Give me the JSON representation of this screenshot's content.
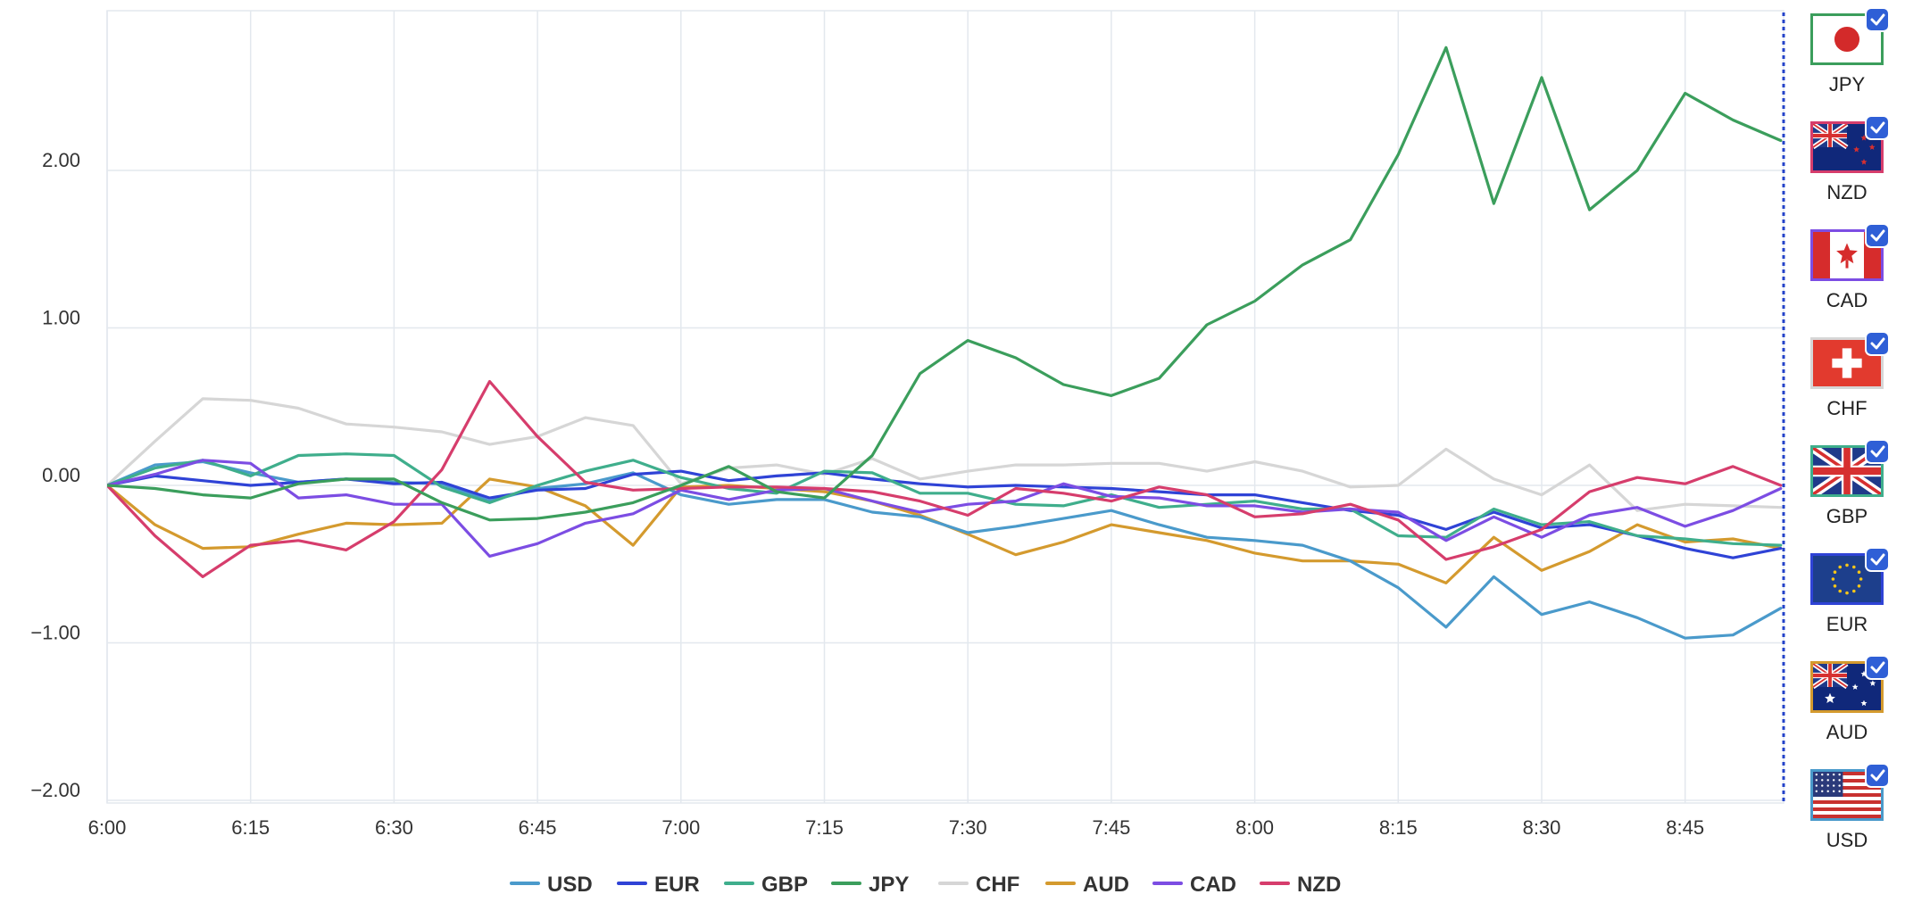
{
  "chart_data": {
    "type": "line",
    "title": "",
    "xlabel": "",
    "ylabel": "",
    "ylim": [
      -2.0,
      2.0
    ],
    "y_ticks": [
      "2.00",
      "1.00",
      "0.00",
      "−1.00",
      "−2.00"
    ],
    "y_tick_values": [
      2,
      1,
      0,
      -1,
      -2
    ],
    "x_ticks": [
      "6:00",
      "6:15",
      "6:30",
      "6:45",
      "7:00",
      "7:15",
      "7:30",
      "7:45",
      "8:00",
      "8:15",
      "8:30",
      "8:45"
    ],
    "x": [
      "6:00",
      "6:05",
      "6:10",
      "6:15",
      "6:20",
      "6:25",
      "6:30",
      "6:35",
      "6:40",
      "6:45",
      "6:50",
      "6:55",
      "7:00",
      "7:05",
      "7:10",
      "7:15",
      "7:20",
      "7:25",
      "7:30",
      "7:35",
      "7:40",
      "7:45",
      "7:50",
      "7:55",
      "8:00",
      "8:05",
      "8:10",
      "8:15",
      "8:20",
      "8:25",
      "8:30",
      "8:35",
      "8:40",
      "8:45",
      "8:50",
      "8:55"
    ],
    "grid": true,
    "legend": "bottom-center",
    "series": [
      {
        "name": "USD",
        "color": "#4a9acb",
        "values": [
          0.0,
          0.13,
          0.15,
          0.08,
          0.02,
          0.04,
          0.02,
          0.01,
          -0.1,
          -0.02,
          0.01,
          0.08,
          -0.06,
          -0.12,
          -0.09,
          -0.09,
          -0.17,
          -0.2,
          -0.3,
          -0.26,
          -0.21,
          -0.16,
          -0.25,
          -0.33,
          -0.35,
          -0.38,
          -0.48,
          -0.65,
          -0.9,
          -0.58,
          -0.82,
          -0.74,
          -0.84,
          -0.97,
          -0.95,
          -0.78
        ]
      },
      {
        "name": "EUR",
        "color": "#2f43d6",
        "values": [
          0.0,
          0.06,
          0.03,
          0.0,
          0.02,
          0.04,
          0.01,
          0.02,
          -0.08,
          -0.03,
          -0.02,
          0.07,
          0.09,
          0.03,
          0.06,
          0.08,
          0.04,
          0.01,
          -0.01,
          0.0,
          -0.01,
          -0.02,
          -0.04,
          -0.06,
          -0.06,
          -0.11,
          -0.16,
          -0.19,
          -0.28,
          -0.17,
          -0.27,
          -0.25,
          -0.32,
          -0.4,
          -0.46,
          -0.4
        ]
      },
      {
        "name": "GBP",
        "color": "#3fae8c",
        "values": [
          0.0,
          0.11,
          0.16,
          0.06,
          0.19,
          0.2,
          0.19,
          -0.01,
          -0.11,
          0.0,
          0.09,
          0.16,
          0.05,
          -0.02,
          -0.05,
          0.09,
          0.08,
          -0.05,
          -0.05,
          -0.12,
          -0.13,
          -0.06,
          -0.14,
          -0.12,
          -0.1,
          -0.15,
          -0.15,
          -0.32,
          -0.33,
          -0.15,
          -0.25,
          -0.23,
          -0.32,
          -0.34,
          -0.37,
          -0.38
        ]
      },
      {
        "name": "JPY",
        "color": "#3b9e5c",
        "values": [
          0.0,
          -0.02,
          -0.06,
          -0.08,
          0.01,
          0.04,
          0.04,
          -0.11,
          -0.22,
          -0.21,
          -0.17,
          -0.11,
          0.0,
          0.12,
          -0.04,
          -0.08,
          0.19,
          0.71,
          0.92,
          0.81,
          0.64,
          0.57,
          0.68,
          1.02,
          1.17,
          1.4,
          1.56,
          2.1,
          2.78,
          1.79,
          2.59,
          1.75,
          2.0,
          2.49,
          2.32,
          2.19
        ]
      },
      {
        "name": "CHF",
        "color": "#d6d6d6",
        "values": [
          0.0,
          0.28,
          0.55,
          0.54,
          0.49,
          0.39,
          0.37,
          0.34,
          0.26,
          0.31,
          0.43,
          0.38,
          0.01,
          0.11,
          0.13,
          0.07,
          0.17,
          0.04,
          0.09,
          0.13,
          0.13,
          0.14,
          0.14,
          0.09,
          0.15,
          0.09,
          -0.01,
          0.0,
          0.23,
          0.04,
          -0.06,
          0.13,
          -0.16,
          -0.12,
          -0.13,
          -0.14
        ]
      },
      {
        "name": "AUD",
        "color": "#d49a2e",
        "values": [
          0.0,
          -0.25,
          -0.4,
          -0.39,
          -0.31,
          -0.24,
          -0.25,
          -0.24,
          0.04,
          -0.01,
          -0.13,
          -0.38,
          -0.01,
          0.0,
          -0.02,
          -0.04,
          -0.1,
          -0.19,
          -0.31,
          -0.44,
          -0.36,
          -0.25,
          -0.3,
          -0.35,
          -0.43,
          -0.48,
          -0.48,
          -0.5,
          -0.62,
          -0.33,
          -0.54,
          -0.42,
          -0.25,
          -0.36,
          -0.34,
          -0.4
        ]
      },
      {
        "name": "CAD",
        "color": "#7c4de3",
        "values": [
          0.0,
          0.07,
          0.16,
          0.14,
          -0.08,
          -0.06,
          -0.12,
          -0.12,
          -0.45,
          -0.37,
          -0.24,
          -0.18,
          -0.03,
          -0.09,
          -0.03,
          -0.02,
          -0.1,
          -0.17,
          -0.12,
          -0.1,
          0.01,
          -0.07,
          -0.08,
          -0.13,
          -0.13,
          -0.17,
          -0.15,
          -0.17,
          -0.35,
          -0.2,
          -0.33,
          -0.19,
          -0.14,
          -0.26,
          -0.16,
          -0.02
        ]
      },
      {
        "name": "NZD",
        "color": "#d63d6c",
        "values": [
          0.0,
          -0.32,
          -0.58,
          -0.38,
          -0.35,
          -0.41,
          -0.23,
          0.1,
          0.66,
          0.31,
          0.02,
          -0.03,
          -0.02,
          -0.01,
          -0.01,
          -0.02,
          -0.04,
          -0.1,
          -0.19,
          -0.02,
          -0.05,
          -0.1,
          -0.01,
          -0.06,
          -0.2,
          -0.18,
          -0.12,
          -0.22,
          -0.47,
          -0.39,
          -0.28,
          -0.04,
          0.05,
          0.01,
          0.12,
          0.0
        ]
      }
    ]
  },
  "legend": {
    "items": [
      {
        "label": "USD",
        "color": "#4a9acb"
      },
      {
        "label": "EUR",
        "color": "#2f43d6"
      },
      {
        "label": "GBP",
        "color": "#3fae8c"
      },
      {
        "label": "JPY",
        "color": "#3b9e5c"
      },
      {
        "label": "CHF",
        "color": "#d6d6d6"
      },
      {
        "label": "AUD",
        "color": "#d49a2e"
      },
      {
        "label": "CAD",
        "color": "#7c4de3"
      },
      {
        "label": "NZD",
        "color": "#d63d6c"
      }
    ]
  },
  "flag_panel": {
    "check_color": "#2f5fd6",
    "divider_color": "#2443c9",
    "items": [
      {
        "code": "JPY",
        "flag": "japan-flag-icon",
        "border": "#3b9e5c",
        "checked": true
      },
      {
        "code": "NZD",
        "flag": "new-zealand-flag-icon",
        "border": "#d63d6c",
        "checked": true
      },
      {
        "code": "CAD",
        "flag": "canada-flag-icon",
        "border": "#7c4de3",
        "checked": true
      },
      {
        "code": "CHF",
        "flag": "switzerland-flag-icon",
        "border": "#d6d6d6",
        "checked": true
      },
      {
        "code": "GBP",
        "flag": "uk-flag-icon",
        "border": "#3fae8c",
        "checked": true
      },
      {
        "code": "EUR",
        "flag": "eu-flag-icon",
        "border": "#2f43d6",
        "checked": true
      },
      {
        "code": "AUD",
        "flag": "australia-flag-icon",
        "border": "#d49a2e",
        "checked": true
      },
      {
        "code": "USD",
        "flag": "usa-flag-icon",
        "border": "#4a9acb",
        "checked": true
      }
    ]
  }
}
